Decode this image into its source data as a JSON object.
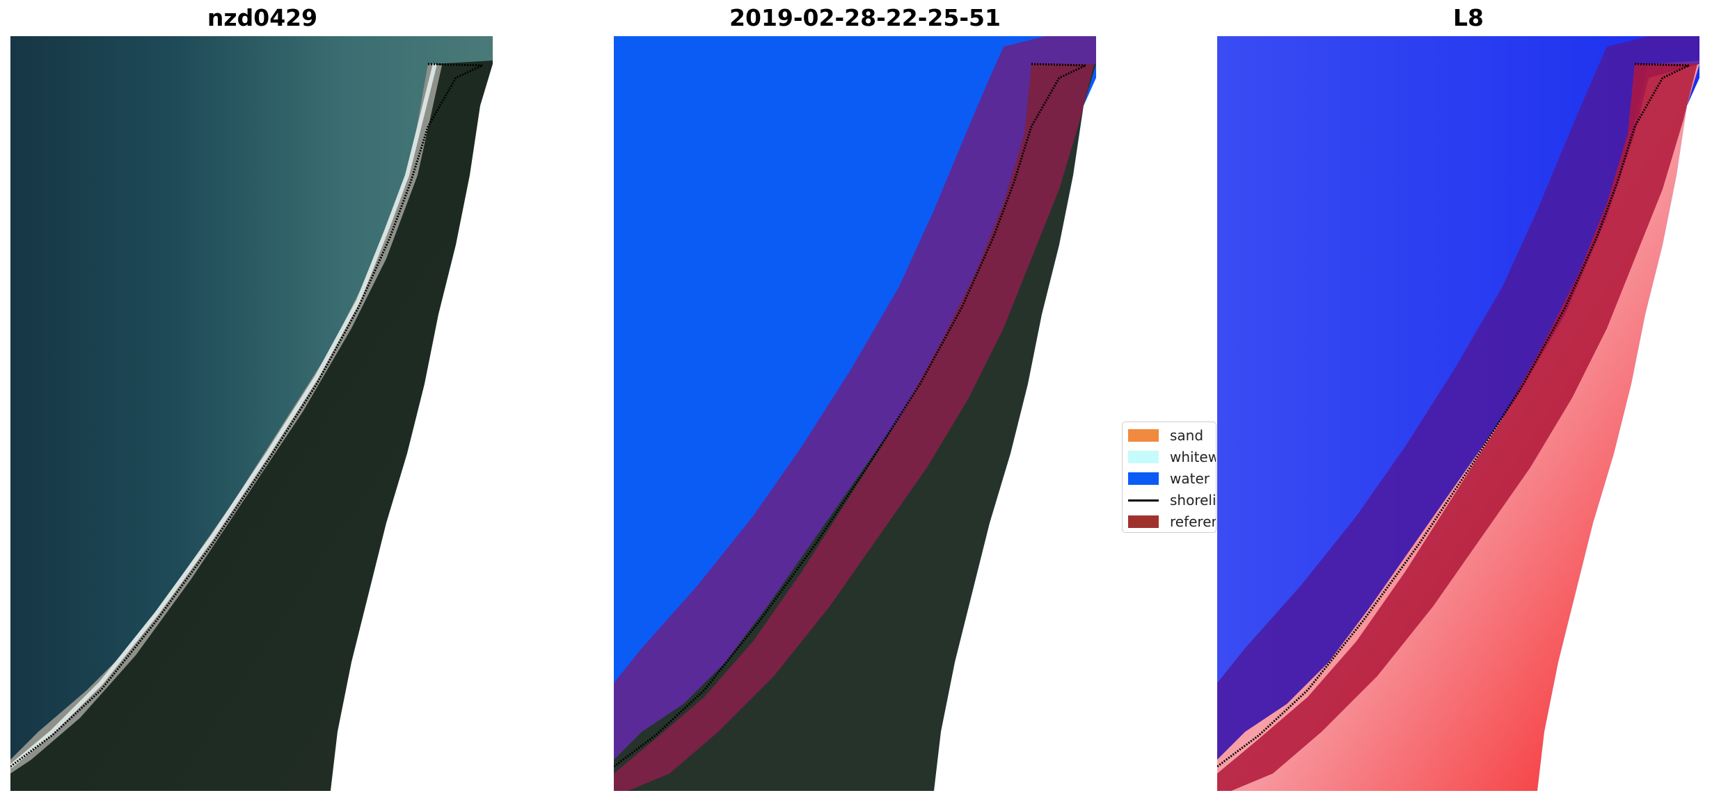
{
  "panels": [
    {
      "title": "nzd0429"
    },
    {
      "title": "2019-02-28-22-25-51"
    },
    {
      "title": "L8"
    }
  ],
  "legend": {
    "items": [
      {
        "label": "sand",
        "color": "#f08a3e",
        "kind": "patch"
      },
      {
        "label": "whitewater",
        "color": "#c6fbfb",
        "kind": "patch"
      },
      {
        "label": "water",
        "color": "#0a5cf5",
        "kind": "patch"
      },
      {
        "label": "shoreline",
        "color": "#000000",
        "kind": "line"
      },
      {
        "label": "reference",
        "color": "#a0322e",
        "kind": "patch"
      }
    ]
  },
  "colors": {
    "ocean_dark": "#1a3a4a",
    "ocean_shallow": "#2f6670",
    "land_dark": "#1f2c24",
    "beach": "#8c8e8a",
    "water_class": "#0a5cf5",
    "buffer_purple": "#5a2a98",
    "reference_maroon": "#7a2146",
    "index_blue": "#1530f0",
    "index_red": "#f51a1a"
  }
}
